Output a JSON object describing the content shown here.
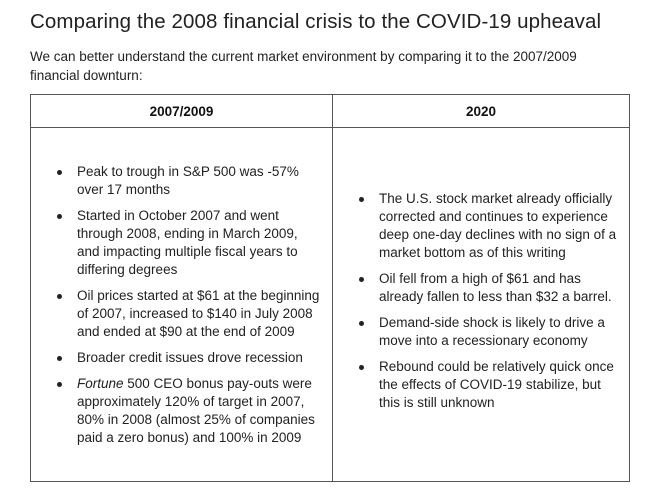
{
  "title": "Comparing the 2008 financial crisis to the COVID-19 upheaval",
  "intro": "We can better understand the current market environment by comparing it to the 2007/2009 financial downturn:",
  "table": {
    "headers": [
      "2007/2009",
      "2020"
    ],
    "col1": [
      {
        "text": "Peak to trough in S&P 500 was -57% over 17 months"
      },
      {
        "text": "Started in October 2007 and went through 2008, ending in March 2009, and impacting multiple fiscal years to differing degrees"
      },
      {
        "text": "Oil prices started at $61 at the beginning of 2007, increased to $140 in July 2008 and ended at $90 at the end of 2009"
      },
      {
        "text": "Broader credit issues drove recession"
      },
      {
        "italic": "Fortune",
        "text": " 500 CEO bonus pay-outs were approximately 120% of target in 2007, 80% in 2008 (almost 25% of companies paid a zero bonus) and 100% in 2009"
      }
    ],
    "col2": [
      {
        "text": "The U.S. stock market already officially corrected and continues to experience deep one-day declines with no sign of a market bottom as of this writing"
      },
      {
        "text": "Oil fell from a high of $61 and has already fallen to less than $32 a barrel."
      },
      {
        "text": "Demand-side shock is likely to drive a move into a recessionary economy"
      },
      {
        "text": "Rebound could be relatively quick once the effects of COVID-19 stabilize, but this is still unknown"
      }
    ]
  }
}
